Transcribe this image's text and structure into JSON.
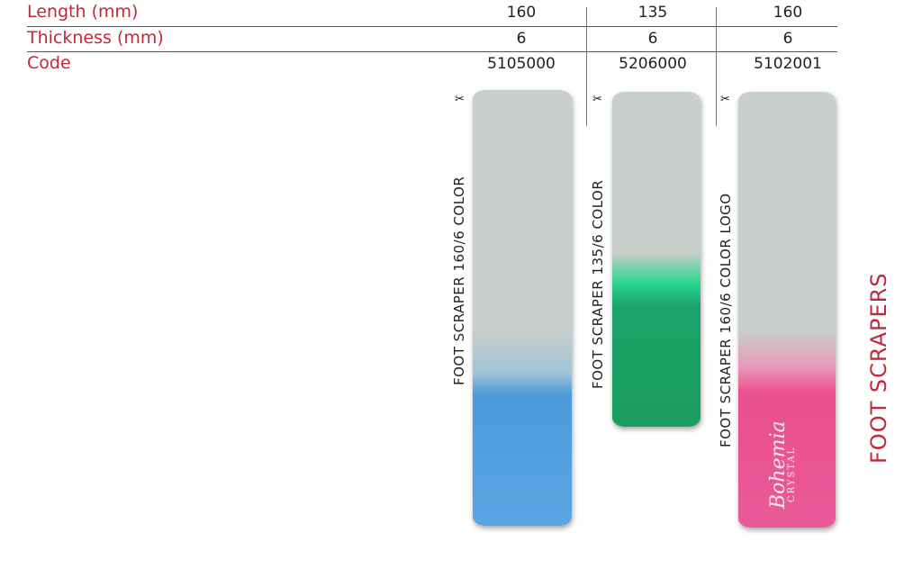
{
  "specs": {
    "length_label": "Length (mm)",
    "thickness_label": "Thickness (mm)",
    "code_label": "Code"
  },
  "products": [
    {
      "length": "160",
      "thickness": "6",
      "code": "5105000",
      "name": "FOOT SCRAPER 160/6 COLOR",
      "color": "#4c9ad9"
    },
    {
      "length": "135",
      "thickness": "6",
      "code": "5206000",
      "name": "FOOT SCRAPER 135/6 COLOR",
      "color": "#1aa36a"
    },
    {
      "length": "160",
      "thickness": "6",
      "code": "5102001",
      "name": "FOOT SCRAPER 160/6 COLOR LOGO",
      "color": "#ea4f8f"
    }
  ],
  "logo": {
    "script": "Bohemia",
    "sub": "CRYSTAL"
  },
  "section_title": "FOOT SCRAPERS",
  "icons": [
    "brand-mark-icon"
  ],
  "colors": {
    "accent": "#c3283a",
    "glass": "#c9cfca"
  }
}
